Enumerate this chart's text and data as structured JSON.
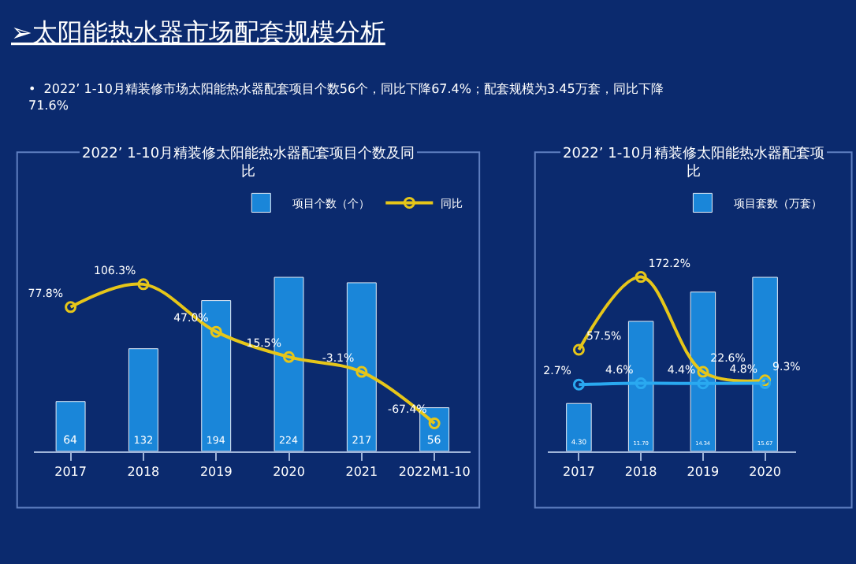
{
  "chart_data": [
    {
      "type": "other",
      "title": "➢太阳能热水器市场配套规模分析",
      "annotations": [
        "•  2022’ 1-10月精装修市场太阳能热水器配套项目个数56个，同比下降67.4%；配套规模为3.45万套，同比下降\n71.6%"
      ]
    },
    {
      "type": "bar",
      "title": "2022’ 1-10月精装修太阳能热水器配套项目个数及同比",
      "categories": [
        "2017",
        "2018",
        "2019",
        "2020",
        "2021",
        "2022M1-10"
      ],
      "legend": "top right",
      "tick_labels": "x",
      "grid": false,
      "series": [
        {
          "name": "项目个数（个）",
          "type": "bar",
          "color": "#1a86d9",
          "values": [
            64,
            132,
            194,
            224,
            217,
            56
          ],
          "value_labels": [
            "64",
            "132",
            "194",
            "224",
            "217",
            "56"
          ]
        },
        {
          "name": "同比",
          "type": "line",
          "axis": "y2",
          "color": "#e6c619",
          "marker": "circle",
          "values": [
            77.8,
            106.3,
            47.0,
            15.5,
            -3.1,
            -67.4
          ],
          "value_labels": [
            "77.8%",
            "106.3%",
            "47.0%",
            "15.5%",
            "-3.1%",
            "-67.4%"
          ]
        }
      ]
    },
    {
      "type": "bar",
      "title": "2022’ 1-10月精装修太阳能热水器配套项比",
      "categories": [
        "2017",
        "2018",
        "2019",
        "2020"
      ],
      "legend": "top right",
      "tick_labels": "x",
      "grid": false,
      "series": [
        {
          "name": "项目套数（万套）",
          "type": "bar",
          "color": "#1a86d9",
          "values": [
            4.3,
            11.7,
            14.34,
            15.67
          ],
          "value_labels": [
            "4.30",
            "11.70",
            "14.34",
            "15.67"
          ]
        },
        {
          "type": "line",
          "axis": "y2",
          "color": "#e6c619",
          "marker": "circle",
          "values": [
            57.5,
            172.2,
            22.6,
            9.3
          ],
          "value_labels": [
            "57.5%",
            "172.2%",
            "22.6%",
            "9.3%"
          ]
        },
        {
          "type": "line",
          "axis": "y2",
          "color": "#2aa9f0",
          "marker": "circle",
          "values": [
            2.7,
            4.6,
            4.4,
            4.8
          ],
          "value_labels": [
            "2.7%",
            "4.6%",
            "4.4%",
            "4.8%"
          ]
        }
      ]
    }
  ]
}
